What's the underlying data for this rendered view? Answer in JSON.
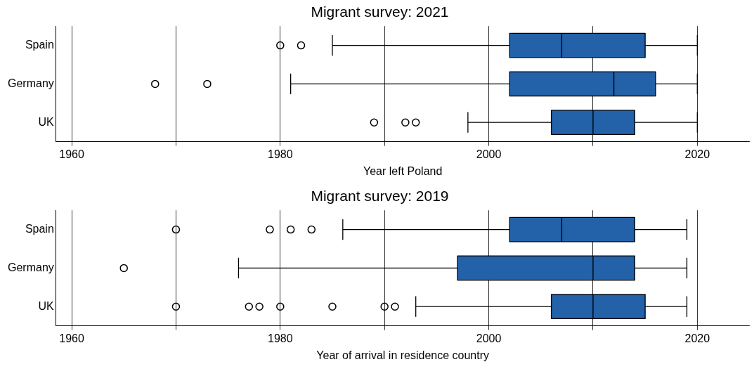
{
  "chart_data": [
    {
      "type": "box",
      "orientation": "horizontal",
      "title": "Migrant survey: 2021",
      "xlabel": "Year left Poland",
      "categories": [
        "Spain",
        "Germany",
        "UK"
      ],
      "color": "#2361a8",
      "grid": "x",
      "xlim": [
        1958.5,
        2025
      ],
      "xticks": [
        1960,
        {
          "value": 1970,
          "label": null
        },
        1980,
        {
          "value": 1990,
          "label": null
        },
        2000,
        {
          "value": 2010,
          "label": null
        },
        2020
      ],
      "boxes": [
        {
          "low": 1985,
          "q1": 2002,
          "median": 2007,
          "q3": 2015,
          "high": 2020,
          "outliers": [
            1980,
            1982
          ]
        },
        {
          "low": 1981,
          "q1": 2002,
          "median": 2012,
          "q3": 2016,
          "high": 2020,
          "outliers": [
            1968,
            1973
          ]
        },
        {
          "low": 1998,
          "q1": 2006,
          "median": 2010,
          "q3": 2014,
          "high": 2020,
          "outliers": [
            1989,
            1992,
            1993
          ]
        }
      ]
    },
    {
      "type": "box",
      "orientation": "horizontal",
      "title": "Migrant survey: 2019",
      "xlabel": "Year of arrival in residence country",
      "categories": [
        "Spain",
        "Germany",
        "UK"
      ],
      "color": "#2361a8",
      "grid": "x",
      "xlim": [
        1958.5,
        2025
      ],
      "xticks": [
        1960,
        {
          "value": 1970,
          "label": null
        },
        1980,
        {
          "value": 1990,
          "label": null
        },
        2000,
        {
          "value": 2010,
          "label": null
        },
        2020
      ],
      "boxes": [
        {
          "low": 1986,
          "q1": 2002,
          "median": 2007,
          "q3": 2014,
          "high": 2019,
          "outliers": [
            1970,
            1979,
            1981,
            1983
          ]
        },
        {
          "low": 1976,
          "q1": 1997,
          "median": 2010,
          "q3": 2014,
          "high": 2019,
          "outliers": [
            1965
          ]
        },
        {
          "low": 1993,
          "q1": 2006,
          "median": 2010,
          "q3": 2015,
          "high": 2019,
          "outliers": [
            1970,
            1977,
            1978,
            1980,
            1985,
            1990,
            1991
          ]
        }
      ]
    }
  ]
}
